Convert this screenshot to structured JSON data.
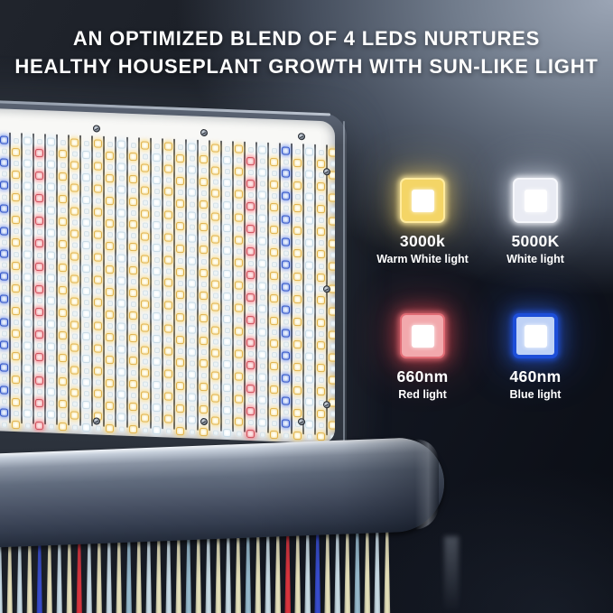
{
  "title": {
    "line1": "AN OPTIMIZED BLEND OF 4 LEDS NURTURES",
    "line2": "HEALTHY HOUSEPLANT GROWTH WITH SUN-LIKE LIGHT"
  },
  "led_legend": [
    {
      "id": "warm",
      "value": "3000k",
      "label": "Warm White light",
      "swatch_color": "#f4d566",
      "ring_color": "#ffeb9e",
      "glow_color": "#ffd966"
    },
    {
      "id": "white",
      "value": "5000K",
      "label": "White light",
      "swatch_color": "#e9ebf3",
      "ring_color": "#f6f7fb",
      "glow_color": "#e8f1ff"
    },
    {
      "id": "red",
      "value": "660nm",
      "label": "Red light",
      "swatch_color": "#f2a9ad",
      "ring_color": "#e06b74",
      "glow_color": "#ff4e58"
    },
    {
      "id": "blue",
      "value": "460nm",
      "label": "Blue light",
      "swatch_color": "#bfd2f6",
      "ring_color": "#1d4ed8",
      "glow_color": "#2f62e8"
    }
  ],
  "panel": {
    "rows": 26,
    "columns": [
      "warm",
      "white",
      "blue",
      "warm",
      "white",
      "red",
      "white",
      "warm",
      "warm",
      "white",
      "warm",
      "warm",
      "white",
      "warm",
      "warm",
      "white",
      "warm",
      "warm",
      "white",
      "warm",
      "warm",
      "white",
      "warm",
      "red",
      "white",
      "warm",
      "blue",
      "warm",
      "white",
      "warm",
      "warm"
    ],
    "led_palette": {
      "warm": {
        "ring": "#e2b44e",
        "fill": "#f7e7b2",
        "core": "#fffdf0",
        "glow": "#ffd970"
      },
      "white": {
        "ring": "#c9dbe6",
        "fill": "#eaf4f9",
        "core": "#ffffff",
        "glow": "#dcefff"
      },
      "red": {
        "ring": "#d04f5b",
        "fill": "#f2a9ae",
        "core": "#fbe3e4",
        "glow": "#ff636e"
      },
      "blue": {
        "ring": "#2f52c8",
        "fill": "#93abe8",
        "core": "#e6edfc",
        "glow": "#5d84f2"
      }
    }
  },
  "floor_reflection": {
    "palette": {
      "cream": "#f2ecc4",
      "ice": "#d3e6ef",
      "steel": "#9fc3d6",
      "blue": "#3a50d8",
      "red": "#e63740"
    },
    "stripes": [
      "ice",
      "cream",
      "ice",
      "cream",
      "blue",
      "cream",
      "ice",
      "cream",
      "red",
      "ice",
      "cream",
      "ice",
      "cream",
      "steel",
      "cream",
      "ice",
      "cream",
      "ice",
      "cream",
      "steel",
      "cream",
      "ice",
      "cream",
      "ice",
      "cream",
      "steel",
      "cream",
      "ice",
      "cream",
      "red",
      "cream",
      "ice",
      "blue",
      "cream",
      "ice",
      "cream",
      "steel",
      "cream",
      "ice",
      "cream"
    ]
  },
  "background": {
    "accent_light": "#9ba5b5",
    "base_dark": "#0a0d14"
  }
}
